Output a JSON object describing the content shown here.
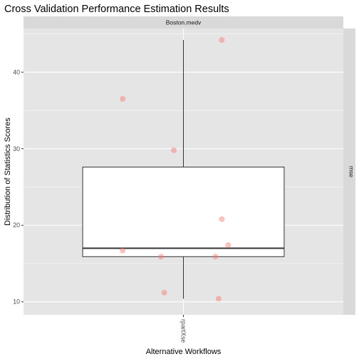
{
  "chart_data": {
    "type": "boxplot",
    "title": "Cross Validation Performance Estimation Results",
    "xlabel": "Alternative Workflows",
    "ylabel": "Distribution of Statistics Scores",
    "facet_top": "Boston.medv",
    "facet_right": "mse",
    "categories": [
      "rpartXse"
    ],
    "yticks": [
      10,
      20,
      30,
      40
    ],
    "ylim": [
      8.3,
      45.7
    ],
    "grid": true,
    "box": {
      "category": "rpartXse",
      "whisker_low": 10.4,
      "q1": 15.9,
      "median": 17.0,
      "q3": 27.6,
      "whisker_high": 44.2
    },
    "points": [
      {
        "category": "rpartXse",
        "y": 44.2,
        "jitter": 0.12
      },
      {
        "category": "rpartXse",
        "y": 36.5,
        "jitter": -0.19
      },
      {
        "category": "rpartXse",
        "y": 29.8,
        "jitter": -0.03
      },
      {
        "category": "rpartXse",
        "y": 20.8,
        "jitter": 0.12
      },
      {
        "category": "rpartXse",
        "y": 17.4,
        "jitter": 0.14
      },
      {
        "category": "rpartXse",
        "y": 16.7,
        "jitter": -0.19
      },
      {
        "category": "rpartXse",
        "y": 15.9,
        "jitter": -0.07
      },
      {
        "category": "rpartXse",
        "y": 15.9,
        "jitter": 0.1
      },
      {
        "category": "rpartXse",
        "y": 11.2,
        "jitter": -0.06
      },
      {
        "category": "rpartXse",
        "y": 10.4,
        "jitter": 0.11
      }
    ],
    "colors": {
      "panel_bg": "#e5e5e5",
      "strip_bg": "#d9d9d9",
      "grid": "#ffffff",
      "box_fill": "#ffffff",
      "box_line": "#333333",
      "point": "#f8766d"
    }
  }
}
